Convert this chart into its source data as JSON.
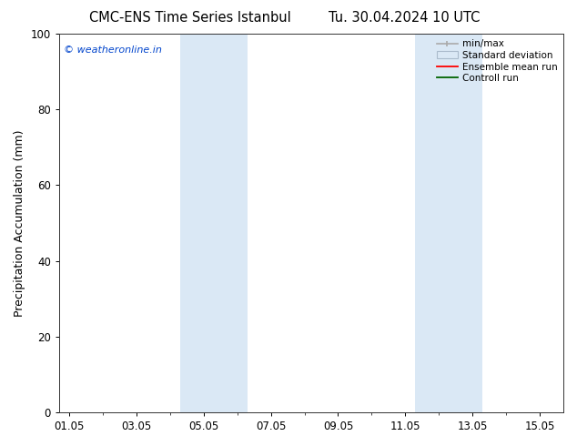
{
  "title_left": "CMC-ENS Time Series Istanbul",
  "title_right": "Tu. 30.04.2024 10 UTC",
  "ylabel": "Precipitation Accumulation (mm)",
  "ylim": [
    0,
    100
  ],
  "yticks": [
    0,
    20,
    40,
    60,
    80,
    100
  ],
  "xtick_positions": [
    0,
    2,
    4,
    6,
    8,
    10,
    12,
    14
  ],
  "xtick_labels": [
    "01.05",
    "03.05",
    "05.05",
    "07.05",
    "09.05",
    "11.05",
    "13.05",
    "15.05"
  ],
  "xlim": [
    -0.3,
    14.7
  ],
  "shaded_bands": [
    {
      "xmin": 3.3,
      "xmax": 5.3
    },
    {
      "xmin": 10.3,
      "xmax": 12.3
    }
  ],
  "band_color": "#dae8f5",
  "watermark_text": "© weatheronline.in",
  "watermark_color": "#0044cc",
  "legend_items": [
    {
      "label": "min/max",
      "type": "minmax"
    },
    {
      "label": "Standard deviation",
      "type": "band"
    },
    {
      "label": "Ensemble mean run",
      "type": "line",
      "color": "red"
    },
    {
      "label": "Controll run",
      "type": "line",
      "color": "darkgreen"
    }
  ],
  "background_color": "#ffffff",
  "title_fontsize": 10.5,
  "tick_fontsize": 8.5,
  "ylabel_fontsize": 9,
  "legend_fontsize": 7.5
}
